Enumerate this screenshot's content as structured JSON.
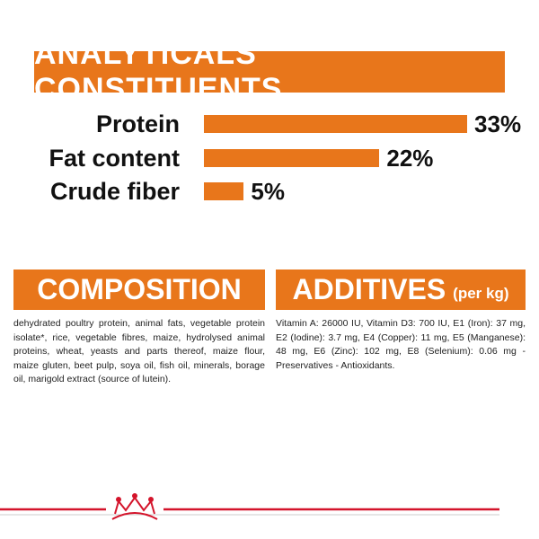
{
  "chart_data": {
    "type": "bar",
    "title": "ANALYTICALS CONSTITUENTS",
    "categories": [
      "Protein",
      "Fat content",
      "Crude fiber"
    ],
    "values": [
      33,
      22,
      5
    ],
    "value_labels": [
      "33%",
      "22%",
      "5%"
    ],
    "color": "#e8761b"
  },
  "composition": {
    "title": "COMPOSITION",
    "text": "dehydrated poultry protein, animal fats, vegetable protein isolate*, rice, vegetable fibres, maize, hydrolysed animal proteins, wheat, yeasts and parts thereof, maize flour, maize gluten, beet pulp, soya oil, fish oil, minerals, borage oil, marigold extract (source of lutein)."
  },
  "additives": {
    "title": "ADDITIVES",
    "subtitle": "(per kg)",
    "text": "Vitamin A: 26000 IU, Vitamin D3: 700 IU, E1 (Iron): 37 mg, E2 (Iodine): 3.7 mg, E4 (Copper): 11 mg, E5 (Manganese): 48 mg, E6 (Zinc): 102 mg, E8 (Selenium): 0.06 mg - Preservatives - Antioxidants."
  }
}
